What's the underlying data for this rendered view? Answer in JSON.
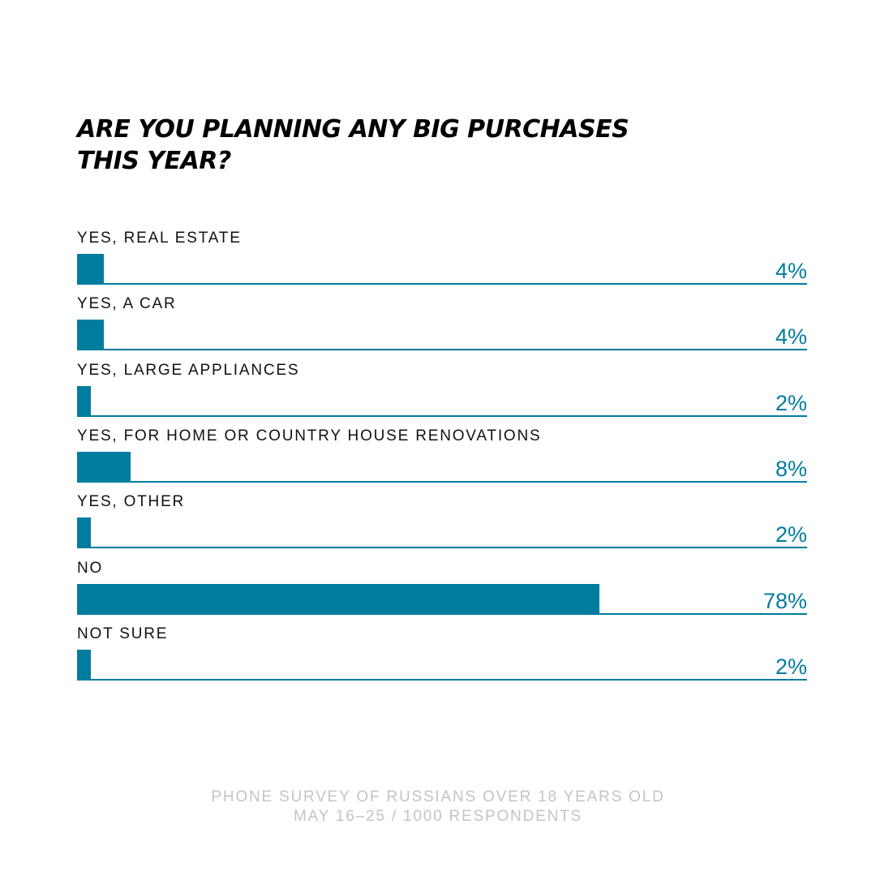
{
  "chart_data": {
    "type": "bar",
    "orientation": "horizontal",
    "title": [
      "ARE YOU PLANNING ANY BIG PURCHASES",
      "THIS YEAR?"
    ],
    "categories": [
      "YES, REAL ESTATE",
      "YES, A CAR",
      "YES, LARGE APPLIANCES",
      "YES, FOR HOME OR COUNTRY HOUSE RENOVATIONS",
      "YES, OTHER",
      "NO",
      "NOT SURE"
    ],
    "values": [
      4,
      4,
      2,
      8,
      2,
      78,
      2
    ],
    "value_labels": [
      "4%",
      "4%",
      "2%",
      "8%",
      "2%",
      "78%",
      "2%"
    ],
    "unit": "%",
    "xlim": [
      0,
      109
    ],
    "grid": false,
    "legend": "none",
    "bar_color": "#007c9f",
    "value_color": "#007c9f"
  },
  "footnote": {
    "line1": "PHONE SURVEY OF RUSSIANS OVER 18 YEARS OLD",
    "line2": "MAY 16–25 / 1000 RESPONDENTS"
  }
}
